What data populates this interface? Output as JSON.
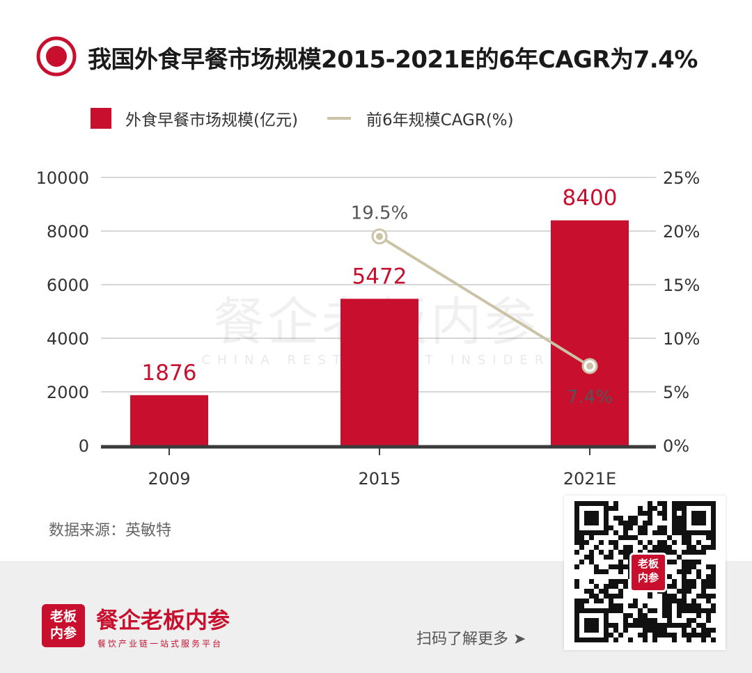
{
  "header": {
    "title": "我国外食早餐市场规模2015-2021E的6年CAGR为7.4%",
    "icon": "target-icon",
    "accent_color": "#c8102e"
  },
  "legend": {
    "bar_label": "外食早餐市场规模(亿元)",
    "line_label": "前6年规模CAGR(%)"
  },
  "watermark": {
    "cn": "餐企老板内参",
    "en": "CHINA RESTAURANT INSIDER"
  },
  "chart_data": {
    "type": "bar",
    "categories": [
      "2009",
      "2015",
      "2021E"
    ],
    "series": [
      {
        "name": "外食早餐市场规模(亿元)",
        "type": "bar",
        "axis": "left",
        "values": [
          1876,
          5472,
          8400
        ],
        "labels": [
          "1876",
          "5472",
          "8400"
        ],
        "color": "#c8102e"
      },
      {
        "name": "前6年规模CAGR(%)",
        "type": "line",
        "axis": "right",
        "values": [
          null,
          19.5,
          7.4
        ],
        "labels": [
          "",
          "19.5%",
          "7.4%"
        ],
        "color": "#cbc3a6"
      }
    ],
    "y_left": {
      "min": 0,
      "max": 10000,
      "ticks": [
        "0",
        "2000",
        "4000",
        "6000",
        "8000",
        "10000"
      ]
    },
    "y_right": {
      "min": 0,
      "max": 25,
      "ticks": [
        "0%",
        "5%",
        "10%",
        "15%",
        "20%",
        "25%"
      ]
    },
    "grid": true
  },
  "source": "数据来源：英敏特",
  "footer": {
    "brand_logo_text": "老板\n内参",
    "brand_name": "餐企老板内参",
    "brand_slogan": "餐饮产业链一站式服务平台",
    "scan_hint": "扫码了解更多 ➤",
    "qr_badge_text": "老板\n内参"
  }
}
